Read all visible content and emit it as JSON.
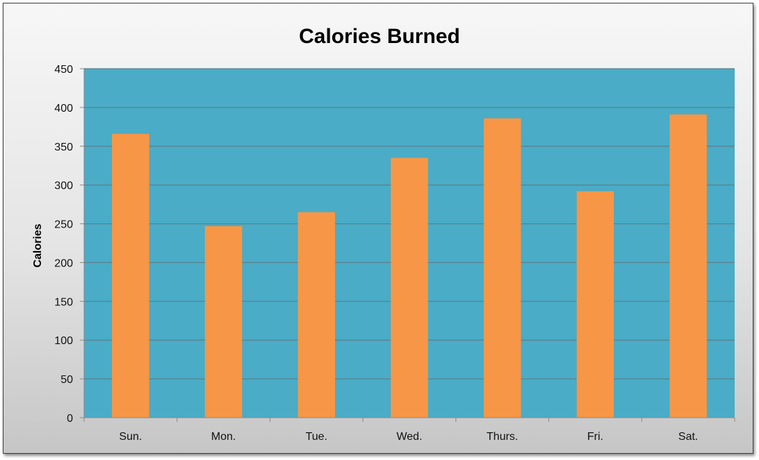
{
  "chart_data": {
    "type": "bar",
    "title": "Calories Burned",
    "xlabel": "",
    "ylabel": "Calories",
    "categories": [
      "Sun.",
      "Mon.",
      "Tue.",
      "Wed.",
      "Thurs.",
      "Fri.",
      "Sat."
    ],
    "values": [
      366,
      247,
      265,
      335,
      386,
      292,
      391
    ],
    "ylim": [
      0,
      450
    ],
    "yticks": [
      0,
      50,
      100,
      150,
      200,
      250,
      300,
      350,
      400,
      450
    ],
    "ytick_labels": [
      "0",
      "50",
      "100",
      "150",
      "200",
      "250",
      "300",
      "350",
      "400",
      "450"
    ],
    "grid": true,
    "legend": "none"
  },
  "colors": {
    "plot_background": "#4aacc6",
    "bar_fill": "#f79646",
    "gridline": "#5a7f8c",
    "axis": "#888888"
  }
}
